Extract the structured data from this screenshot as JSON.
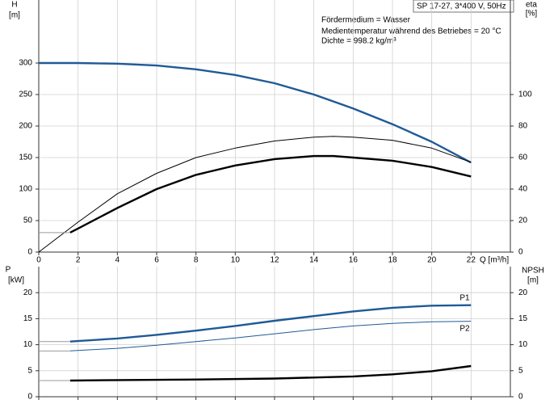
{
  "chart_data": [
    {
      "type": "line",
      "title": "SP 17-27, 3*400 V, 50Hz",
      "annotations": [
        "Fördermedium = Wasser",
        "Medientemperatur während des Betriebes = 20 °C",
        "Dichte = 998.2 kg/m³"
      ],
      "ylabel": [
        "H",
        "[m]"
      ],
      "y2label": [
        "eta",
        "[%]"
      ],
      "xlabel": "Q [m³/h]",
      "xlim": [
        0,
        24
      ],
      "xticks": [
        0,
        2,
        4,
        6,
        8,
        10,
        12,
        14,
        16,
        18,
        20,
        22
      ],
      "ylim": [
        0,
        400
      ],
      "yticks": [
        0,
        50,
        100,
        150,
        200,
        250,
        300
      ],
      "y2lim": [
        0,
        160
      ],
      "y2ticks": [
        0,
        20,
        40,
        60,
        80,
        100
      ],
      "grid": true,
      "series": [
        {
          "color": "#1f5a96",
          "line_width": 2.4,
          "x": [
            0,
            2,
            4,
            6,
            8,
            10,
            12,
            14,
            16,
            18,
            20,
            22
          ],
          "values": [
            300,
            300,
            299,
            296,
            290,
            281,
            268,
            250,
            228,
            203,
            175,
            142
          ]
        },
        {
          "color": "#000000",
          "line_width": 1,
          "axis": "y2",
          "x": [
            0,
            2,
            4,
            6,
            8,
            10,
            12,
            14,
            15,
            16,
            18,
            20,
            22
          ],
          "values": [
            0,
            19,
            37,
            50,
            60,
            66,
            70.5,
            73,
            73.5,
            73,
            71,
            66,
            57
          ]
        },
        {
          "color": "#000000",
          "line_width": 2.4,
          "axis": "y2",
          "x": [
            1.6,
            2,
            4,
            6,
            8,
            10,
            12,
            14,
            15,
            16,
            18,
            20,
            22
          ],
          "values": [
            12.4,
            15,
            28,
            40,
            49,
            55,
            59,
            61,
            61,
            60,
            58,
            54,
            48
          ]
        }
      ]
    },
    {
      "type": "line",
      "ylabel": [
        "P",
        "[kW]"
      ],
      "y2label": [
        "NPSH",
        "[m]"
      ],
      "xlim": [
        0,
        24
      ],
      "xticks": [
        0,
        2,
        4,
        6,
        8,
        10,
        12,
        14,
        16,
        18,
        20,
        22
      ],
      "ylim": [
        0,
        25
      ],
      "yticks": [
        0,
        5,
        10,
        15,
        20
      ],
      "y2lim": [
        0,
        25
      ],
      "y2ticks": [
        0,
        5,
        10,
        15,
        20
      ],
      "grid": true,
      "series": [
        {
          "name": "P1",
          "color": "#1f5a96",
          "line_width": 2.4,
          "x": [
            1.6,
            4,
            6,
            8,
            10,
            12,
            14,
            16,
            18,
            20,
            22
          ],
          "values": [
            10.6,
            11.2,
            11.9,
            12.7,
            13.6,
            14.6,
            15.5,
            16.4,
            17.1,
            17.5,
            17.6
          ]
        },
        {
          "name": "P2",
          "color": "#1f5a96",
          "line_width": 1,
          "x": [
            1.6,
            4,
            6,
            8,
            10,
            12,
            14,
            16,
            18,
            20,
            22
          ],
          "values": [
            8.8,
            9.3,
            9.9,
            10.6,
            11.3,
            12.1,
            12.9,
            13.6,
            14.1,
            14.4,
            14.5
          ]
        },
        {
          "color": "#000000",
          "line_width": 2.4,
          "axis": "y2",
          "x": [
            1.6,
            4,
            8,
            12,
            16,
            18,
            20,
            22
          ],
          "values": [
            3.1,
            3.2,
            3.3,
            3.5,
            3.9,
            4.3,
            4.9,
            5.9
          ]
        }
      ]
    }
  ]
}
